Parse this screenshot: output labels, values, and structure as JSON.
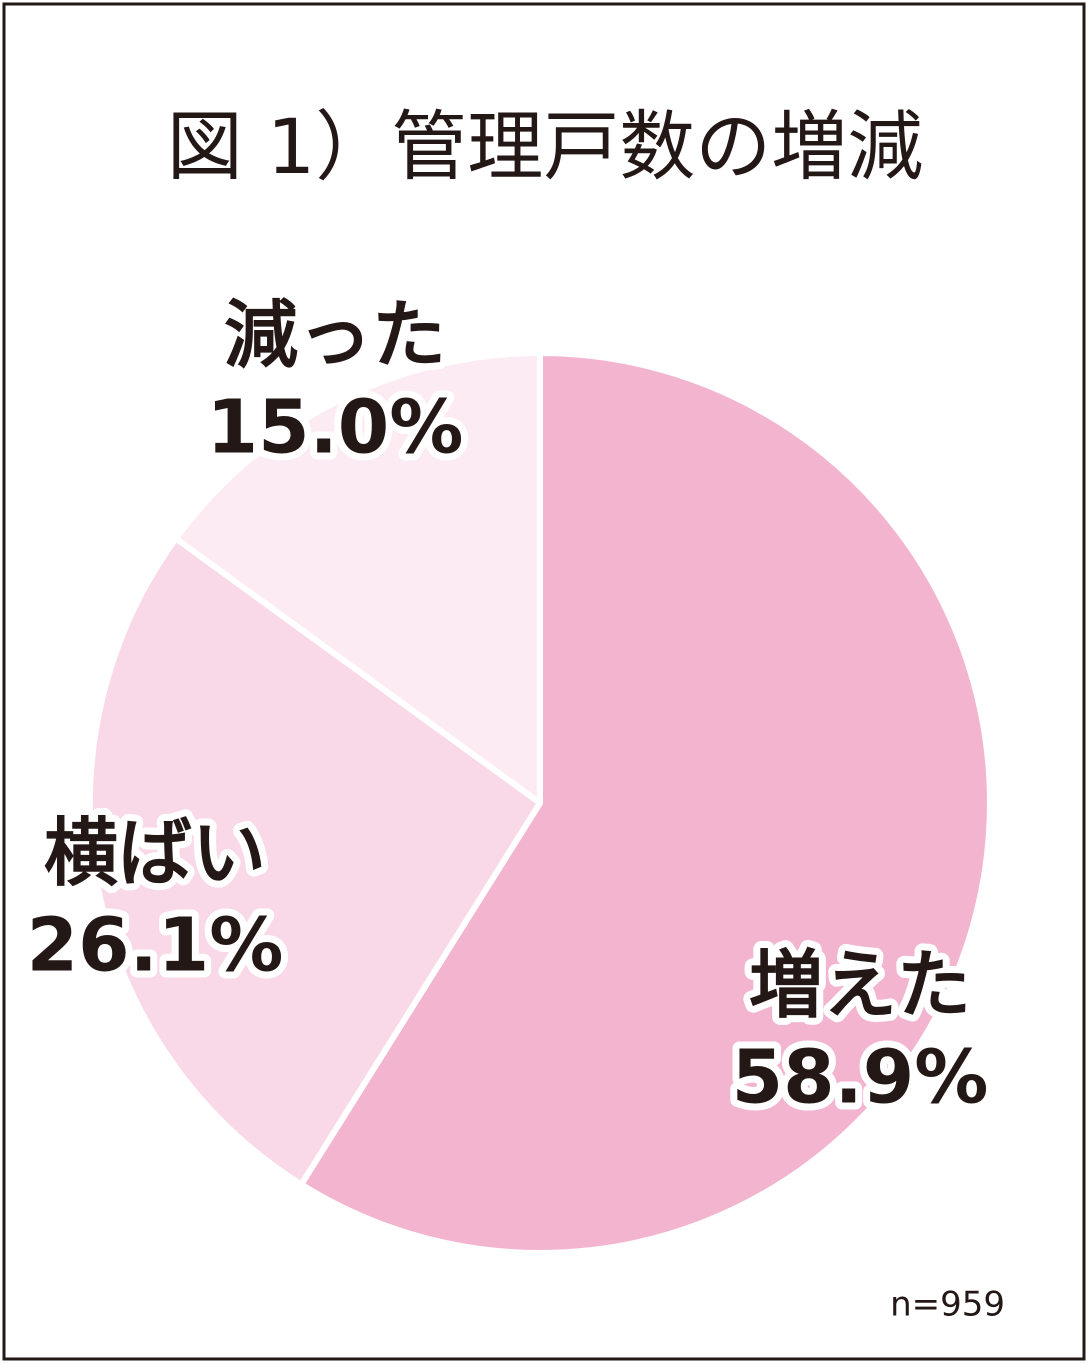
{
  "chart_data": {
    "type": "pie",
    "title": "図 1）管理戸数の増減",
    "categories": [
      "増えた",
      "横ばい",
      "減った"
    ],
    "values": [
      58.9,
      26.1,
      15.0
    ],
    "value_labels": [
      "58.9%",
      "26.1%",
      "15.0%"
    ],
    "colors": [
      "#f3b4d0",
      "#f9d9e8",
      "#fcebf2"
    ],
    "annotation": "n=959"
  }
}
